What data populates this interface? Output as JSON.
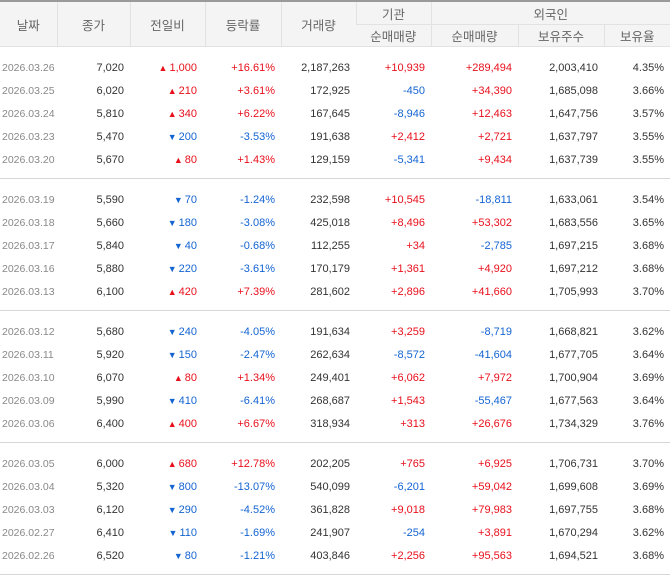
{
  "headers": {
    "date": "날짜",
    "close": "종가",
    "change": "전일비",
    "rate": "등락률",
    "volume": "거래량",
    "institution": "기관",
    "foreign": "외국인",
    "inst_net": "순매매량",
    "foreign_net": "순매매량",
    "foreign_shares": "보유주수",
    "foreign_ratio": "보유율"
  },
  "groups": [
    [
      {
        "date": "2026.03.26",
        "close": "7,020",
        "dir": "up",
        "change": "1,000",
        "rate": "+16.61%",
        "volume": "2,187,263",
        "inst": "+10,939",
        "foreign": "+289,494",
        "shares": "2,003,410",
        "ratio": "4.35%"
      },
      {
        "date": "2026.03.25",
        "close": "6,020",
        "dir": "up",
        "change": "210",
        "rate": "+3.61%",
        "volume": "172,925",
        "inst": "-450",
        "foreign": "+34,390",
        "shares": "1,685,098",
        "ratio": "3.66%"
      },
      {
        "date": "2026.03.24",
        "close": "5,810",
        "dir": "up",
        "change": "340",
        "rate": "+6.22%",
        "volume": "167,645",
        "inst": "-8,946",
        "foreign": "+12,463",
        "shares": "1,647,756",
        "ratio": "3.57%"
      },
      {
        "date": "2026.03.23",
        "close": "5,470",
        "dir": "dn",
        "change": "200",
        "rate": "-3.53%",
        "volume": "191,638",
        "inst": "+2,412",
        "foreign": "+2,721",
        "shares": "1,637,797",
        "ratio": "3.55%"
      },
      {
        "date": "2026.03.20",
        "close": "5,670",
        "dir": "up",
        "change": "80",
        "rate": "+1.43%",
        "volume": "129,159",
        "inst": "-5,341",
        "foreign": "+9,434",
        "shares": "1,637,739",
        "ratio": "3.55%"
      }
    ],
    [
      {
        "date": "2026.03.19",
        "close": "5,590",
        "dir": "dn",
        "change": "70",
        "rate": "-1.24%",
        "volume": "232,598",
        "inst": "+10,545",
        "foreign": "-18,811",
        "shares": "1,633,061",
        "ratio": "3.54%"
      },
      {
        "date": "2026.03.18",
        "close": "5,660",
        "dir": "dn",
        "change": "180",
        "rate": "-3.08%",
        "volume": "425,018",
        "inst": "+8,496",
        "foreign": "+53,302",
        "shares": "1,683,556",
        "ratio": "3.65%"
      },
      {
        "date": "2026.03.17",
        "close": "5,840",
        "dir": "dn",
        "change": "40",
        "rate": "-0.68%",
        "volume": "112,255",
        "inst": "+34",
        "foreign": "-2,785",
        "shares": "1,697,215",
        "ratio": "3.68%"
      },
      {
        "date": "2026.03.16",
        "close": "5,880",
        "dir": "dn",
        "change": "220",
        "rate": "-3.61%",
        "volume": "170,179",
        "inst": "+1,361",
        "foreign": "+4,920",
        "shares": "1,697,212",
        "ratio": "3.68%"
      },
      {
        "date": "2026.03.13",
        "close": "6,100",
        "dir": "up",
        "change": "420",
        "rate": "+7.39%",
        "volume": "281,602",
        "inst": "+2,896",
        "foreign": "+41,660",
        "shares": "1,705,993",
        "ratio": "3.70%"
      }
    ],
    [
      {
        "date": "2026.03.12",
        "close": "5,680",
        "dir": "dn",
        "change": "240",
        "rate": "-4.05%",
        "volume": "191,634",
        "inst": "+3,259",
        "foreign": "-8,719",
        "shares": "1,668,821",
        "ratio": "3.62%"
      },
      {
        "date": "2026.03.11",
        "close": "5,920",
        "dir": "dn",
        "change": "150",
        "rate": "-2.47%",
        "volume": "262,634",
        "inst": "-8,572",
        "foreign": "-41,604",
        "shares": "1,677,705",
        "ratio": "3.64%"
      },
      {
        "date": "2026.03.10",
        "close": "6,070",
        "dir": "up",
        "change": "80",
        "rate": "+1.34%",
        "volume": "249,401",
        "inst": "+6,062",
        "foreign": "+7,972",
        "shares": "1,700,904",
        "ratio": "3.69%"
      },
      {
        "date": "2026.03.09",
        "close": "5,990",
        "dir": "dn",
        "change": "410",
        "rate": "-6.41%",
        "volume": "268,687",
        "inst": "+1,543",
        "foreign": "-55,467",
        "shares": "1,677,563",
        "ratio": "3.64%"
      },
      {
        "date": "2026.03.06",
        "close": "6,400",
        "dir": "up",
        "change": "400",
        "rate": "+6.67%",
        "volume": "318,934",
        "inst": "+313",
        "foreign": "+26,676",
        "shares": "1,734,329",
        "ratio": "3.76%"
      }
    ],
    [
      {
        "date": "2026.03.05",
        "close": "6,000",
        "dir": "up",
        "change": "680",
        "rate": "+12.78%",
        "volume": "202,205",
        "inst": "+765",
        "foreign": "+6,925",
        "shares": "1,706,731",
        "ratio": "3.70%"
      },
      {
        "date": "2026.03.04",
        "close": "5,320",
        "dir": "dn",
        "change": "800",
        "rate": "-13.07%",
        "volume": "540,099",
        "inst": "-6,201",
        "foreign": "+59,042",
        "shares": "1,699,608",
        "ratio": "3.69%"
      },
      {
        "date": "2026.03.03",
        "close": "6,120",
        "dir": "dn",
        "change": "290",
        "rate": "-4.52%",
        "volume": "361,828",
        "inst": "+9,018",
        "foreign": "+79,983",
        "shares": "1,697,755",
        "ratio": "3.68%"
      },
      {
        "date": "2026.02.27",
        "close": "6,410",
        "dir": "dn",
        "change": "110",
        "rate": "-1.69%",
        "volume": "241,907",
        "inst": "-254",
        "foreign": "+3,891",
        "shares": "1,670,294",
        "ratio": "3.62%"
      },
      {
        "date": "2026.02.26",
        "close": "6,520",
        "dir": "dn",
        "change": "80",
        "rate": "-1.21%",
        "volume": "403,846",
        "inst": "+2,256",
        "foreign": "+95,563",
        "shares": "1,694,521",
        "ratio": "3.68%"
      }
    ]
  ],
  "colors": {
    "up": "#e8101c",
    "down": "#1464d2"
  }
}
